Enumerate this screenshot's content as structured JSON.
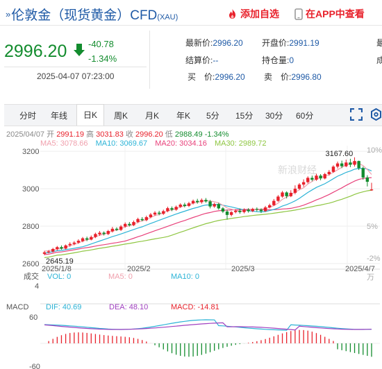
{
  "header": {
    "title": "伦敦金（现货黄金）CFD",
    "code": "(XAU)",
    "add_watch": "添加自选",
    "app_view": "在APP中查看"
  },
  "quote": {
    "price": "2996.20",
    "change": "-40.78",
    "change_pct": "-1.34%",
    "time": "2025-04-07 07:23:00",
    "latest_label": "最新价:",
    "latest": "2996.20",
    "open_label": "开盘价:",
    "open": "2991.19",
    "settle_label": "结算价:",
    "settle": "--",
    "oi_label": "持仓量:",
    "oi": "0",
    "bid_label": "买　价:",
    "bid": "2996.20",
    "ask_label": "卖　价:",
    "ask": "2996.80",
    "extra1": "最",
    "extra2": "成"
  },
  "tabs": [
    "分时",
    "年线",
    "日K",
    "周K",
    "月K",
    "年K",
    "5分",
    "15分",
    "30分",
    "60分"
  ],
  "active_tab": "日K",
  "info": {
    "date": "2025/04/07",
    "open_l": "开",
    "open": "2991.19",
    "high_l": "高",
    "high": "3031.83",
    "close_l": "收",
    "close": "2996.20",
    "low_l": "低",
    "low": "2988.49",
    "pct": "-1.34%"
  },
  "ma": {
    "ma5": "MA5: 3078.66",
    "ma10": "MA10: 3069.67",
    "ma20": "MA20: 3034.16",
    "ma30": "MA30: 2989.72"
  },
  "watermark": "新浪财经",
  "chart_data": {
    "type": "candlestick",
    "y_ticks": [
      "3200",
      "3000",
      "2800",
      "2600"
    ],
    "right_ticks": [
      "10%",
      "5%",
      "-2%"
    ],
    "x_ticks": [
      "2025/1/8",
      "2025/2",
      "2025/3",
      "2025/4/7"
    ],
    "ylim": [
      2600,
      3230
    ],
    "max_label": "3167.60",
    "min_label": "2645.19",
    "candles": [
      [
        2652,
        2660,
        2645,
        2668
      ],
      [
        2660,
        2665,
        2655,
        2672
      ],
      [
        2664,
        2678,
        2660,
        2684
      ],
      [
        2677,
        2688,
        2670,
        2694
      ],
      [
        2688,
        2680,
        2674,
        2697
      ],
      [
        2680,
        2697,
        2676,
        2702
      ],
      [
        2698,
        2705,
        2690,
        2714
      ],
      [
        2705,
        2712,
        2698,
        2720
      ],
      [
        2712,
        2722,
        2706,
        2730
      ],
      [
        2720,
        2735,
        2714,
        2742
      ],
      [
        2735,
        2728,
        2720,
        2744
      ],
      [
        2728,
        2742,
        2724,
        2750
      ],
      [
        2742,
        2758,
        2736,
        2765
      ],
      [
        2756,
        2765,
        2748,
        2774
      ],
      [
        2765,
        2758,
        2750,
        2772
      ],
      [
        2758,
        2774,
        2752,
        2780
      ],
      [
        2772,
        2786,
        2766,
        2796
      ],
      [
        2786,
        2780,
        2774,
        2794
      ],
      [
        2780,
        2798,
        2774,
        2806
      ],
      [
        2798,
        2812,
        2792,
        2820
      ],
      [
        2812,
        2805,
        2798,
        2822
      ],
      [
        2805,
        2822,
        2800,
        2830
      ],
      [
        2822,
        2838,
        2816,
        2845
      ],
      [
        2838,
        2832,
        2826,
        2848
      ],
      [
        2832,
        2848,
        2826,
        2856
      ],
      [
        2848,
        2862,
        2842,
        2870
      ],
      [
        2862,
        2872,
        2855,
        2880
      ],
      [
        2872,
        2866,
        2858,
        2882
      ],
      [
        2866,
        2880,
        2860,
        2888
      ],
      [
        2880,
        2896,
        2874,
        2904
      ],
      [
        2896,
        2888,
        2880,
        2905
      ],
      [
        2888,
        2903,
        2882,
        2910
      ],
      [
        2903,
        2915,
        2897,
        2922
      ],
      [
        2915,
        2908,
        2900,
        2925
      ],
      [
        2908,
        2922,
        2902,
        2930
      ],
      [
        2922,
        2935,
        2916,
        2942
      ],
      [
        2935,
        2928,
        2920,
        2946
      ],
      [
        2928,
        2940,
        2920,
        2948
      ],
      [
        2940,
        2932,
        2925,
        2950
      ],
      [
        2932,
        2905,
        2895,
        2940
      ],
      [
        2905,
        2918,
        2898,
        2925
      ],
      [
        2918,
        2895,
        2888,
        2925
      ],
      [
        2895,
        2878,
        2870,
        2902
      ],
      [
        2878,
        2860,
        2835,
        2888
      ],
      [
        2860,
        2875,
        2852,
        2880
      ],
      [
        2875,
        2882,
        2868,
        2890
      ],
      [
        2882,
        2875,
        2866,
        2894
      ],
      [
        2875,
        2888,
        2868,
        2895
      ],
      [
        2888,
        2880,
        2872,
        2896
      ],
      [
        2880,
        2892,
        2875,
        2898
      ],
      [
        2892,
        2888,
        2878,
        2900
      ],
      [
        2888,
        2880,
        2870,
        2895
      ],
      [
        2880,
        2900,
        2876,
        2908
      ],
      [
        2900,
        2912,
        2895,
        2920
      ],
      [
        2912,
        2935,
        2908,
        2945
      ],
      [
        2935,
        2958,
        2930,
        2966
      ],
      [
        2958,
        2980,
        2952,
        2988
      ],
      [
        2980,
        2960,
        2948,
        2986
      ],
      [
        2960,
        2978,
        2955,
        2992
      ],
      [
        2978,
        3000,
        2970,
        3018
      ],
      [
        3000,
        3022,
        2994,
        3030
      ],
      [
        3022,
        3035,
        3010,
        3050
      ],
      [
        3035,
        3058,
        3028,
        3066
      ],
      [
        3058,
        3048,
        3040,
        3070
      ],
      [
        3048,
        3070,
        3042,
        3080
      ],
      [
        3070,
        3055,
        3045,
        3078
      ],
      [
        3055,
        3078,
        3050,
        3085
      ],
      [
        3078,
        3090,
        3070,
        3100
      ],
      [
        3090,
        3118,
        3085,
        3125
      ],
      [
        3118,
        3135,
        3108,
        3145
      ],
      [
        3135,
        3120,
        3110,
        3150
      ],
      [
        3120,
        3140,
        3115,
        3155
      ],
      [
        3140,
        3128,
        3115,
        3160
      ],
      [
        3128,
        3148,
        3118,
        3167.6
      ],
      [
        3148,
        3110,
        3100,
        3150
      ],
      [
        3110,
        3060,
        3048,
        3118
      ],
      [
        3060,
        3037,
        3012,
        3072
      ],
      [
        2991.19,
        2996.2,
        2988.49,
        3031.83
      ]
    ],
    "ma_lines": {
      "ma5": {
        "color": "#f0a0ad",
        "from": 2662,
        "to": 3079
      },
      "ma10": {
        "color": "#2bb3d6",
        "from": 2640,
        "to": 3070
      },
      "ma20": {
        "color": "#e8407a",
        "from": 2630,
        "to": 3034
      },
      "ma30": {
        "color": "#8ec641",
        "from": 2600,
        "to": 2990
      }
    },
    "volume": {
      "label": "成交",
      "vol": "VOL: 0",
      "ma5": "MA5: 0",
      "ma10": "MA10: 0",
      "y_tick": "4",
      "right_tick": "万"
    },
    "macd": {
      "label": "MACD",
      "dif": "DIF: 40.69",
      "dea": "DEA: 48.10",
      "macd": "MACD: -14.81",
      "y_ticks": [
        "60",
        "-60"
      ]
    }
  },
  "colors": {
    "up": "#e8212b",
    "down": "#138c2e",
    "blue": "#1f5aa6"
  }
}
